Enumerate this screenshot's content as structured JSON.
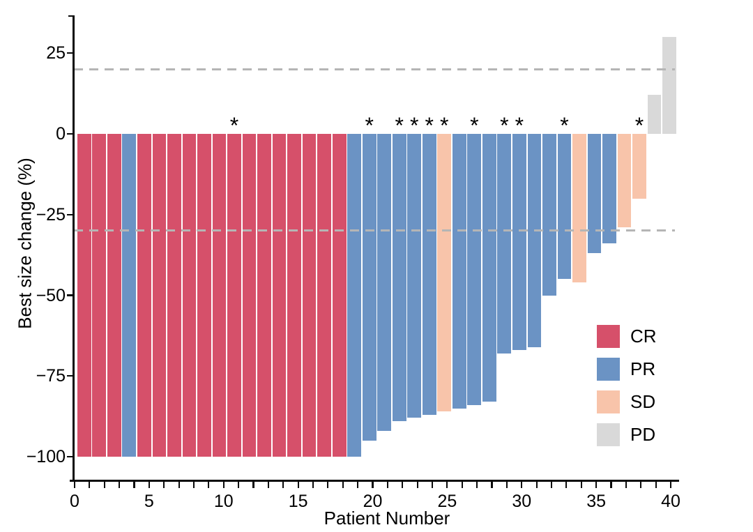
{
  "figure": {
    "ylabel": "Best size change (%)",
    "xlabel": "Patient Number",
    "legend": [
      {
        "label": "CR",
        "color": "#d6506a"
      },
      {
        "label": "PR",
        "color": "#6b93c4"
      },
      {
        "label": "SD",
        "color": "#f8c4aa"
      },
      {
        "label": "PD",
        "color": "#d9d9d9"
      }
    ],
    "colors": {
      "reference_line": "#b5b5b5",
      "axis": "#0a0a0a"
    }
  },
  "chart_data": {
    "type": "bar",
    "title": "",
    "xlabel": "Patient Number",
    "ylabel": "Best size change (%)",
    "grid": false,
    "legend_position": "right-middle",
    "ylim": [
      -108,
      37
    ],
    "xlim": [
      0,
      40
    ],
    "y_tick_values": [
      25,
      0,
      -25,
      -50,
      -75,
      -100
    ],
    "y_tick_labels": [
      "25",
      "0",
      "−25",
      "−50",
      "−75",
      "−100"
    ],
    "x_tick_values": [
      0,
      5,
      10,
      15,
      20,
      25,
      30,
      35,
      40
    ],
    "x_tick_labels": [
      "0",
      "5",
      "10",
      "15",
      "20",
      "25",
      "30",
      "35",
      "40"
    ],
    "x_minor_tick_every": 1,
    "reference_lines": [
      20,
      -30
    ],
    "annotation_symbol": "*",
    "starred_patients": [
      11,
      20,
      22,
      23,
      24,
      25,
      27,
      29,
      30,
      33,
      38
    ],
    "patients": [
      {
        "patient": 1,
        "value": -100,
        "response": "CR",
        "star": false
      },
      {
        "patient": 2,
        "value": -100,
        "response": "CR",
        "star": false
      },
      {
        "patient": 3,
        "value": -100,
        "response": "CR",
        "star": false
      },
      {
        "patient": 4,
        "value": -100,
        "response": "PR",
        "star": false
      },
      {
        "patient": 5,
        "value": -100,
        "response": "CR",
        "star": false
      },
      {
        "patient": 6,
        "value": -100,
        "response": "CR",
        "star": false
      },
      {
        "patient": 7,
        "value": -100,
        "response": "CR",
        "star": false
      },
      {
        "patient": 8,
        "value": -100,
        "response": "CR",
        "star": false
      },
      {
        "patient": 9,
        "value": -100,
        "response": "CR",
        "star": false
      },
      {
        "patient": 10,
        "value": -100,
        "response": "CR",
        "star": false
      },
      {
        "patient": 11,
        "value": -100,
        "response": "CR",
        "star": true
      },
      {
        "patient": 12,
        "value": -100,
        "response": "CR",
        "star": false
      },
      {
        "patient": 13,
        "value": -100,
        "response": "CR",
        "star": false
      },
      {
        "patient": 14,
        "value": -100,
        "response": "CR",
        "star": false
      },
      {
        "patient": 15,
        "value": -100,
        "response": "CR",
        "star": false
      },
      {
        "patient": 16,
        "value": -100,
        "response": "CR",
        "star": false
      },
      {
        "patient": 17,
        "value": -100,
        "response": "CR",
        "star": false
      },
      {
        "patient": 18,
        "value": -100,
        "response": "CR",
        "star": false
      },
      {
        "patient": 19,
        "value": -100,
        "response": "PR",
        "star": false
      },
      {
        "patient": 20,
        "value": -95,
        "response": "PR",
        "star": true
      },
      {
        "patient": 21,
        "value": -92,
        "response": "PR",
        "star": false
      },
      {
        "patient": 22,
        "value": -89,
        "response": "PR",
        "star": true
      },
      {
        "patient": 23,
        "value": -88,
        "response": "PR",
        "star": true
      },
      {
        "patient": 24,
        "value": -87,
        "response": "PR",
        "star": true
      },
      {
        "patient": 25,
        "value": -86,
        "response": "SD",
        "star": true
      },
      {
        "patient": 26,
        "value": -85,
        "response": "PR",
        "star": false
      },
      {
        "patient": 27,
        "value": -84,
        "response": "PR",
        "star": true
      },
      {
        "patient": 28,
        "value": -83,
        "response": "PR",
        "star": false
      },
      {
        "patient": 29,
        "value": -68,
        "response": "PR",
        "star": true
      },
      {
        "patient": 30,
        "value": -67,
        "response": "PR",
        "star": true
      },
      {
        "patient": 31,
        "value": -66,
        "response": "PR",
        "star": false
      },
      {
        "patient": 32,
        "value": -50,
        "response": "PR",
        "star": false
      },
      {
        "patient": 33,
        "value": -45,
        "response": "PR",
        "star": true
      },
      {
        "patient": 34,
        "value": -46,
        "response": "SD",
        "star": false
      },
      {
        "patient": 35,
        "value": -37,
        "response": "PR",
        "star": false
      },
      {
        "patient": 36,
        "value": -34,
        "response": "PR",
        "star": false
      },
      {
        "patient": 37,
        "value": -29,
        "response": "SD",
        "star": false
      },
      {
        "patient": 38,
        "value": -20,
        "response": "SD",
        "star": true
      },
      {
        "patient": 39,
        "value": 12,
        "response": "PD",
        "star": false
      },
      {
        "patient": 40,
        "value": 30,
        "response": "PD",
        "star": false
      }
    ]
  }
}
